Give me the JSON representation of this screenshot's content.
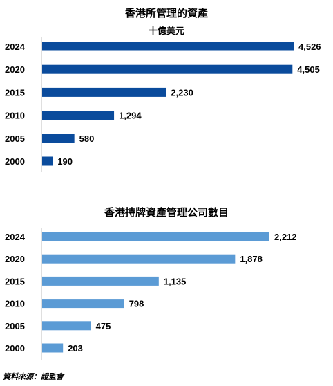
{
  "chart_data": [
    {
      "type": "bar",
      "orientation": "horizontal",
      "title": "香港所管理的資產",
      "subtitle": "十億美元",
      "categories": [
        "2024",
        "2020",
        "2015",
        "2010",
        "2005",
        "2000"
      ],
      "values": [
        4526,
        4505,
        2230,
        1294,
        580,
        190
      ],
      "value_labels": [
        "4,526",
        "4,505",
        "2,230",
        "1,294",
        "580",
        "190"
      ],
      "xlim": [
        0,
        4526
      ],
      "color": "#0a4b9c",
      "grid": false,
      "legend": "none"
    },
    {
      "type": "bar",
      "orientation": "horizontal",
      "title": "香港持牌資產管理公司數目",
      "subtitle": "",
      "categories": [
        "2024",
        "2020",
        "2015",
        "2010",
        "2005",
        "2000"
      ],
      "values": [
        2212,
        1878,
        1135,
        798,
        475,
        203
      ],
      "value_labels": [
        "2,212",
        "1,878",
        "1,135",
        "798",
        "475",
        "203"
      ],
      "xlim": [
        0,
        2212
      ],
      "color": "#5b9bd5",
      "grid": false,
      "legend": "none"
    }
  ],
  "source": "資料來源：證監會"
}
